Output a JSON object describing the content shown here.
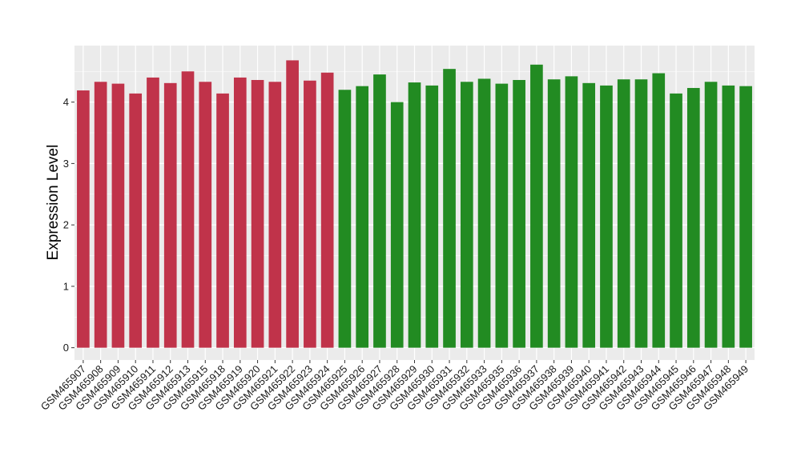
{
  "chart_data": {
    "type": "bar",
    "title": "",
    "xlabel": "",
    "ylabel": "Expression Level",
    "ylim": [
      -0.2,
      4.92
    ],
    "yticks": [
      0,
      1,
      2,
      3,
      4
    ],
    "grid": true,
    "background_color": "#ebebeb",
    "grid_color": "#ffffff",
    "categories": [
      "GSM465907",
      "GSM465908",
      "GSM465909",
      "GSM465910",
      "GSM465911",
      "GSM465912",
      "GSM465913",
      "GSM465915",
      "GSM465918",
      "GSM465919",
      "GSM465920",
      "GSM465921",
      "GSM465922",
      "GSM465923",
      "GSM465924",
      "GSM465925",
      "GSM465926",
      "GSM465927",
      "GSM465928",
      "GSM465929",
      "GSM465930",
      "GSM465931",
      "GSM465932",
      "GSM465933",
      "GSM465935",
      "GSM465936",
      "GSM465937",
      "GSM465938",
      "GSM465939",
      "GSM465940",
      "GSM465941",
      "GSM465942",
      "GSM465943",
      "GSM465944",
      "GSM465945",
      "GSM465946",
      "GSM465947",
      "GSM465948",
      "GSM465949"
    ],
    "values": [
      4.19,
      4.33,
      4.3,
      4.14,
      4.4,
      4.31,
      4.5,
      4.33,
      4.14,
      4.4,
      4.36,
      4.33,
      4.68,
      4.35,
      4.48,
      4.2,
      4.26,
      4.45,
      4.0,
      4.32,
      4.27,
      4.54,
      4.33,
      4.38,
      4.3,
      4.36,
      4.61,
      4.37,
      4.42,
      4.31,
      4.27,
      4.37,
      4.37,
      4.47,
      4.14,
      4.23,
      4.33,
      4.27,
      4.26
    ],
    "colors": [
      "#c0334a",
      "#c0334a",
      "#c0334a",
      "#c0334a",
      "#c0334a",
      "#c0334a",
      "#c0334a",
      "#c0334a",
      "#c0334a",
      "#c0334a",
      "#c0334a",
      "#c0334a",
      "#c0334a",
      "#c0334a",
      "#c0334a",
      "#228b22",
      "#228b22",
      "#228b22",
      "#228b22",
      "#228b22",
      "#228b22",
      "#228b22",
      "#228b22",
      "#228b22",
      "#228b22",
      "#228b22",
      "#228b22",
      "#228b22",
      "#228b22",
      "#228b22",
      "#228b22",
      "#228b22",
      "#228b22",
      "#228b22",
      "#228b22",
      "#228b22",
      "#228b22",
      "#228b22",
      "#228b22"
    ]
  }
}
